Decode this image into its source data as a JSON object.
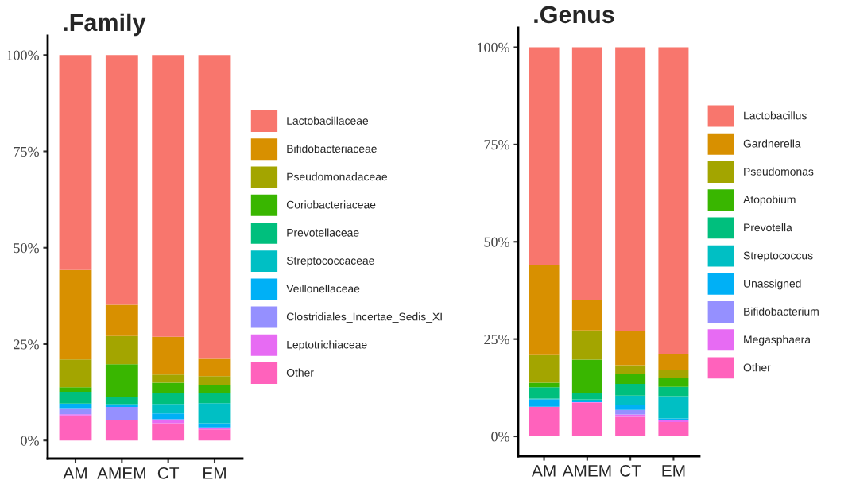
{
  "chart_data": [
    {
      "type": "bar",
      "title": ".Family",
      "stacked": true,
      "legend": "right",
      "grid": false,
      "categories": [
        "AM",
        "AMEM",
        "CT",
        "EM"
      ],
      "ylim": [
        -4.7,
        105
      ],
      "yticks": [
        {
          "value": 0,
          "label": "0%"
        },
        {
          "value": 25,
          "label": "25%"
        },
        {
          "value": 50,
          "label": "50%"
        },
        {
          "value": 75,
          "label": "75%"
        },
        {
          "value": 100,
          "label": "100%"
        }
      ],
      "series": [
        {
          "name": "Other",
          "color": "#ff62bc",
          "values": [
            6.5,
            5.3,
            4.5,
            2.9
          ]
        },
        {
          "name": "Leptotrichiaceae",
          "color": "#e76bf3",
          "values": [
            0.3,
            0,
            1.0,
            0.5
          ]
        },
        {
          "name": "Clostridiales_Incertae_Sedis_XI",
          "color": "#9590ff",
          "values": [
            1.4,
            3.4,
            0,
            0
          ]
        },
        {
          "name": "Veillonellaceae",
          "color": "#00b0f6",
          "values": [
            1.4,
            0.4,
            1.5,
            1.1
          ]
        },
        {
          "name": "Streptococcaceae",
          "color": "#00bfc4",
          "values": [
            0,
            0.4,
            2.5,
            5.2
          ]
        },
        {
          "name": "Prevotellaceae",
          "color": "#00bf7d",
          "values": [
            3.0,
            1.9,
            2.8,
            2.6
          ]
        },
        {
          "name": "Coriobacteriaceae",
          "color": "#39b600",
          "values": [
            1.2,
            8.4,
            2.7,
            2.2
          ]
        },
        {
          "name": "Pseudomonadaceae",
          "color": "#a3a500",
          "values": [
            7.2,
            7.3,
            2.1,
            2.2
          ]
        },
        {
          "name": "Bifidobacteriaceae",
          "color": "#d89000",
          "values": [
            23.2,
            8.1,
            9.8,
            4.5
          ]
        },
        {
          "name": "Lactobacillaceae",
          "color": "#f8766d",
          "values": [
            55.8,
            64.8,
            73.1,
            78.8
          ]
        }
      ]
    },
    {
      "type": "bar",
      "title": ".Genus",
      "stacked": true,
      "legend": "right",
      "grid": false,
      "categories": [
        "AM",
        "AMEM",
        "CT",
        "EM"
      ],
      "ylim": [
        -5.1,
        105
      ],
      "yticks": [
        {
          "value": 0,
          "label": "0%"
        },
        {
          "value": 25,
          "label": "25%"
        },
        {
          "value": 50,
          "label": "50%"
        },
        {
          "value": 75,
          "label": "75%"
        },
        {
          "value": 100,
          "label": "100%"
        }
      ],
      "series": [
        {
          "name": "Other",
          "color": "#ff62bc",
          "values": [
            7.6,
            8.7,
            5.0,
            3.7
          ]
        },
        {
          "name": "Megasphaera",
          "color": "#e76bf3",
          "values": [
            0,
            0.1,
            0.6,
            0.6
          ]
        },
        {
          "name": "Bifidobacterium",
          "color": "#9590ff",
          "values": [
            0,
            0,
            1.2,
            0
          ]
        },
        {
          "name": "Unassigned",
          "color": "#00b0f6",
          "values": [
            1.9,
            0.2,
            1.2,
            0.3
          ]
        },
        {
          "name": "Streptococcus",
          "color": "#00bfc4",
          "values": [
            0.2,
            0.5,
            2.5,
            5.7
          ]
        },
        {
          "name": "Prevotella",
          "color": "#00bf7d",
          "values": [
            2.9,
            1.6,
            3.0,
            2.4
          ]
        },
        {
          "name": "Atopobium",
          "color": "#39b600",
          "values": [
            1.2,
            8.6,
            2.5,
            2.3
          ]
        },
        {
          "name": "Pseudomonas",
          "color": "#a3a500",
          "values": [
            7.1,
            7.5,
            2.3,
            2.1
          ]
        },
        {
          "name": "Gardnerella",
          "color": "#d89000",
          "values": [
            23.2,
            7.8,
            8.7,
            4.1
          ]
        },
        {
          "name": "Lactobacillus",
          "color": "#f8766d",
          "values": [
            55.9,
            65.0,
            73.0,
            78.8
          ]
        }
      ]
    }
  ]
}
